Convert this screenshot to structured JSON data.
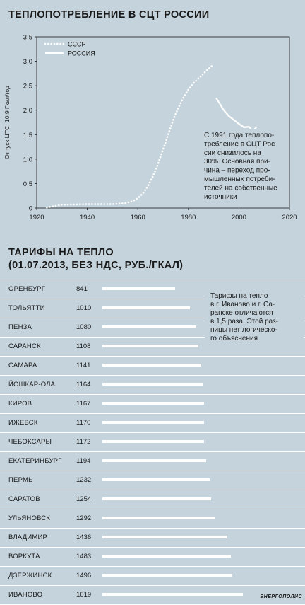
{
  "chart1": {
    "title": "ТЕПЛОПОТРЕБЛЕНИЕ В СЦТ РОССИИ",
    "ylabel": "Отпуск ЦТС, 10,9 Гкал/год",
    "note": "С 1991 года теплопотребление в СЦТ России снизилось на 30%. Основная причина – переход промышленных потребителей на собственные источники",
    "note_lines": [
      "С 1991 года теплопо-",
      "требление в СЦТ Рос-",
      "сии снизилось на",
      "30%. Основная при-",
      "чина – переход про-",
      "мышленных потреби-",
      "телей на собственные",
      "источники"
    ]
  },
  "chart2": {
    "title_line1": "ТАРИФЫ НА ТЕПЛО",
    "title_line2": "(01.07.2013, БЕЗ НДС, РУБ./ГКАЛ)",
    "note": "Тарифы на тепло в г. Иваново и г. Саранске отличаются в 1,5 раза. Этой разницы нет логического объяснения",
    "note_lines": [
      "Тарифы на тепло",
      "в г. Иваново и г. Са-",
      "ранске отличаются",
      "в 1,5 раза. Этой раз-",
      "ницы нет логическо-",
      "го объяснения"
    ]
  },
  "footer": "ЭНЕРГОПОЛИС",
  "colors": {
    "background": "#c5d3dc",
    "lines": "#ffffff",
    "text": "#1a1a1a"
  },
  "chart_data": [
    {
      "type": "line",
      "title": "ТЕПЛОПОТРЕБЛЕНИЕ В СЦТ РОССИИ",
      "xlabel": "",
      "ylabel": "Отпуск ЦТС, 10,9 Гкал/год",
      "xlim": [
        1920,
        2020
      ],
      "ylim": [
        0,
        3.5
      ],
      "xticks": [
        "1920",
        "1940",
        "1960",
        "1980",
        "2000",
        "2020"
      ],
      "yticks": [
        "0",
        "0,5",
        "1,0",
        "1,5",
        "2,0",
        "2,5",
        "3,0",
        "3,5"
      ],
      "grid": false,
      "legend": "top-left",
      "series": [
        {
          "name": "СССР",
          "style": "dotted",
          "x": [
            1924,
            1930,
            1940,
            1950,
            1955,
            1958,
            1960,
            1962,
            1964,
            1966,
            1968,
            1970,
            1972,
            1974,
            1976,
            1978,
            1980,
            1982,
            1984,
            1986,
            1988,
            1990
          ],
          "y": [
            0.01,
            0.07,
            0.08,
            0.08,
            0.1,
            0.14,
            0.2,
            0.3,
            0.45,
            0.65,
            0.9,
            1.2,
            1.5,
            1.8,
            2.05,
            2.25,
            2.42,
            2.55,
            2.65,
            2.75,
            2.85,
            2.93
          ]
        },
        {
          "name": "РОССИЯ",
          "style": "solid",
          "x": [
            1991,
            1994,
            1996,
            1998,
            2000,
            2002,
            2004,
            2005,
            2006,
            2007
          ],
          "y": [
            2.25,
            2.0,
            1.88,
            1.8,
            1.72,
            1.65,
            1.66,
            1.6,
            1.6,
            1.66
          ]
        }
      ]
    },
    {
      "type": "bar",
      "title": "ТАРИФЫ НА ТЕПЛО (01.07.2013, БЕЗ НДС, РУБ./ГКАЛ)",
      "orientation": "horizontal",
      "categories": [
        "ОРЕНБУРГ",
        "ТОЛЬЯТТИ",
        "ПЕНЗА",
        "САРАНСК",
        "САМАРА",
        "ЙОШКАР-ОЛА",
        "КИРОВ",
        "ИЖЕВСК",
        "ЧЕБОКСАРЫ",
        "ЕКАТЕРИНБУРГ",
        "ПЕРМЬ",
        "САРАТОВ",
        "УЛЬЯНОВСК",
        "ВЛАДИМИР",
        "ВОРКУТА",
        "ДЗЕРЖИНСК",
        "ИВАНОВО"
      ],
      "values": [
        841,
        1010,
        1080,
        1108,
        1141,
        1164,
        1167,
        1170,
        1172,
        1194,
        1232,
        1254,
        1292,
        1436,
        1483,
        1496,
        1619
      ]
    }
  ]
}
